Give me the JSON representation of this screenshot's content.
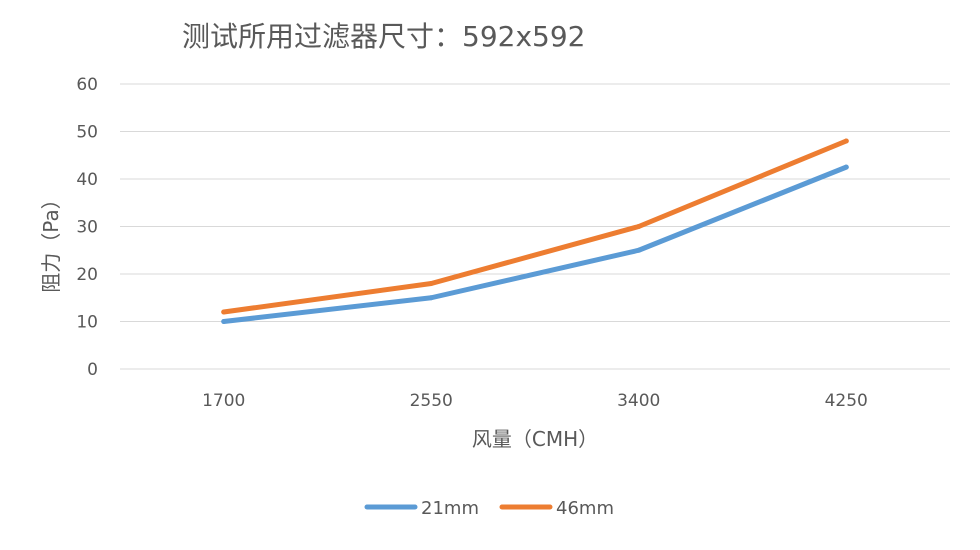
{
  "chart_data": {
    "type": "line",
    "title": "测试所用过滤器尺寸：592x592",
    "xlabel": "风量（CMH）",
    "ylabel": "阻力（Pa）",
    "categories": [
      "1700",
      "2550",
      "3400",
      "4250"
    ],
    "ylim": [
      0,
      60
    ],
    "yticks": [
      0,
      10,
      20,
      30,
      40,
      50,
      60
    ],
    "grid": true,
    "legend": "bottom",
    "series": [
      {
        "name": "21mm",
        "color": "#5b9bd5",
        "values": [
          10,
          15,
          25,
          42.5
        ]
      },
      {
        "name": "46mm",
        "color": "#ed7d31",
        "values": [
          12,
          18,
          30,
          48
        ]
      }
    ]
  }
}
